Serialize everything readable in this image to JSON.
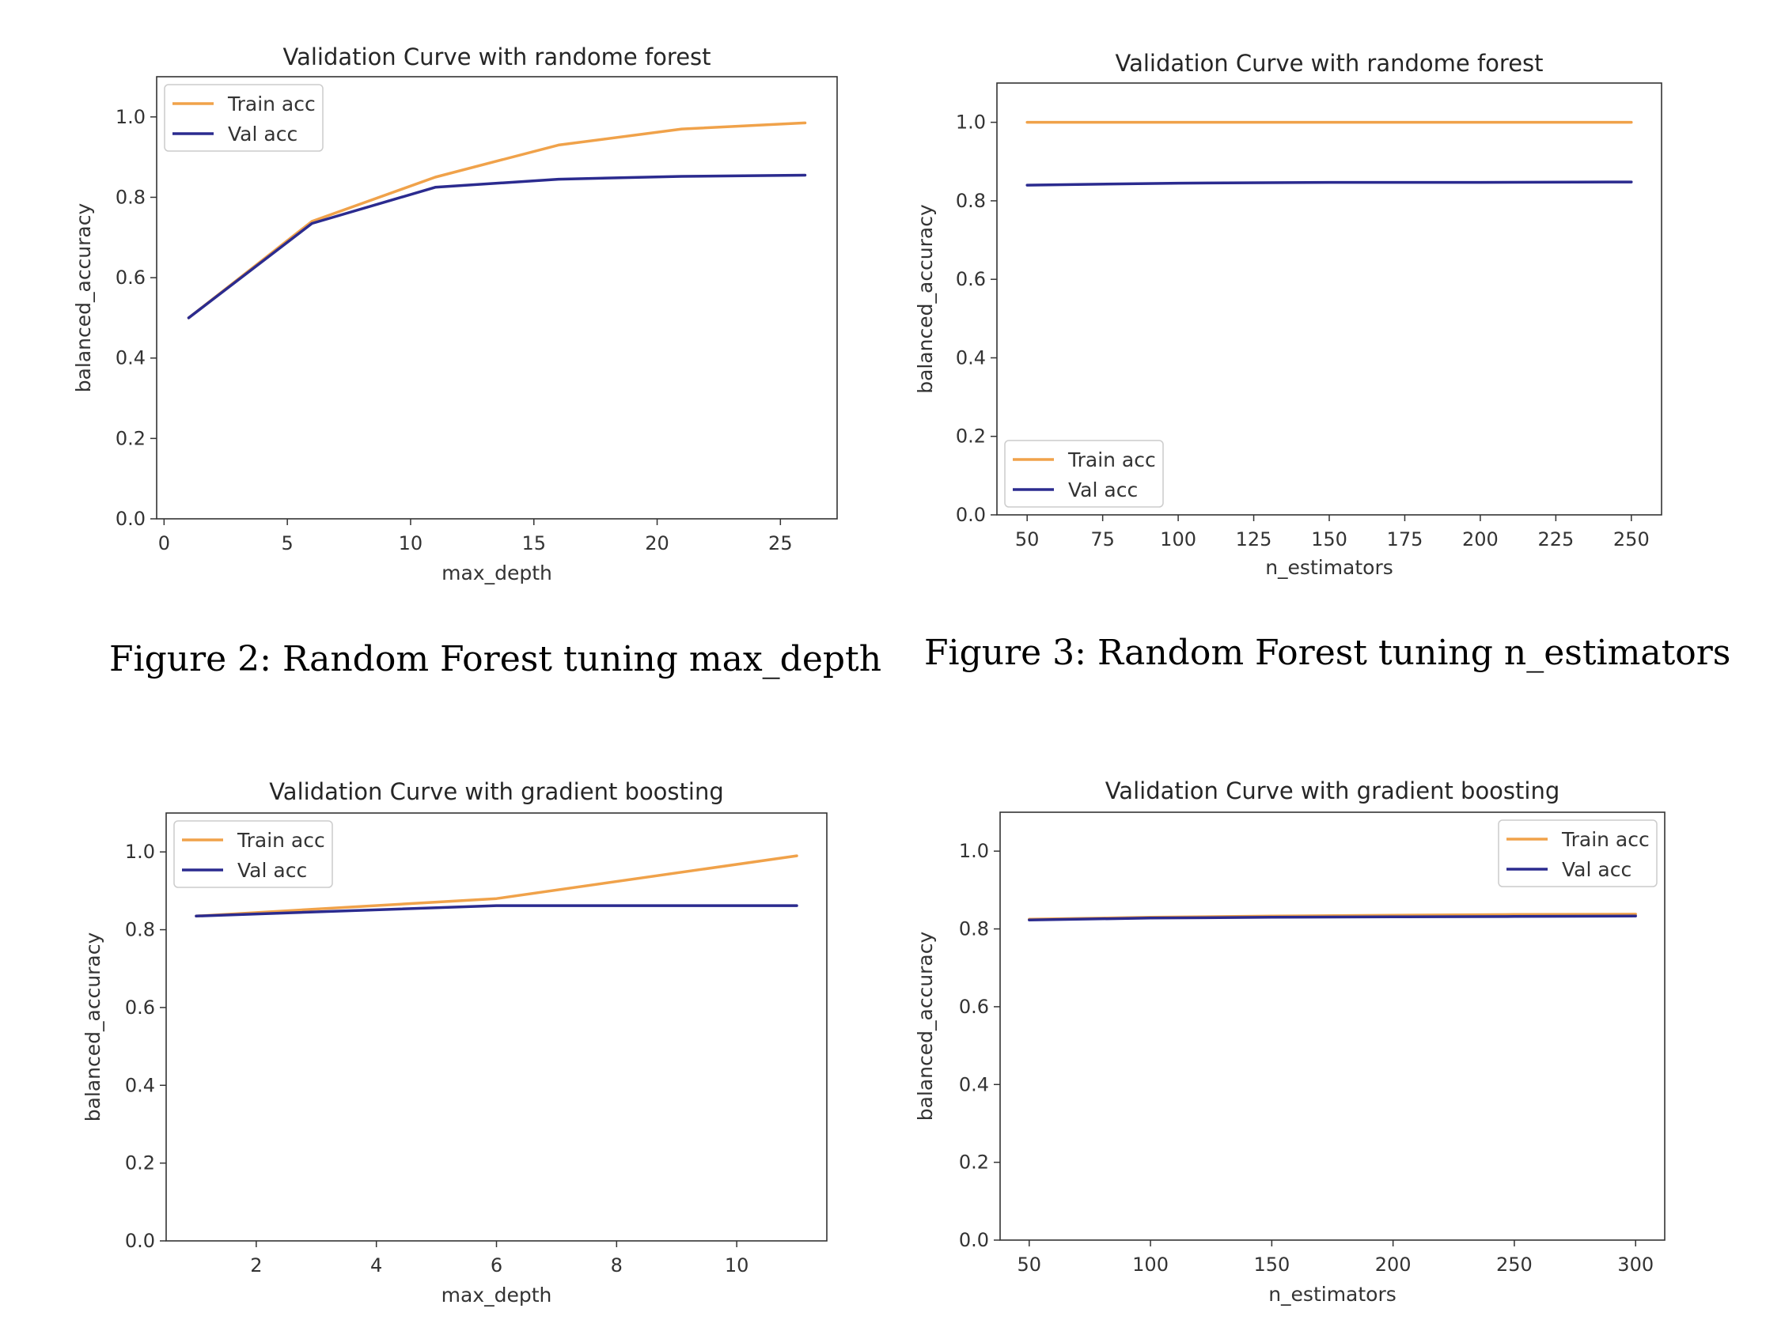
{
  "colors": {
    "train": "#f0a24a",
    "val": "#2b2b8f",
    "axis": "#333333"
  },
  "captions": [
    "Figure 2: Random Forest tuning max_depth",
    "Figure 3: Random Forest tuning n_estimators"
  ],
  "chart_data": [
    {
      "type": "line",
      "title": "Validation Curve with randome forest",
      "xlabel": "max_depth",
      "ylabel": "balanced_accuracy",
      "xlim": [
        -0.3,
        27.3
      ],
      "ylim": [
        0,
        1.1
      ],
      "xticks": [
        0,
        5,
        10,
        15,
        20,
        25
      ],
      "xtick_labels": [
        "0",
        "5",
        "10",
        "15",
        "20",
        "25"
      ],
      "yticks": [
        0,
        0.2,
        0.4,
        0.6,
        0.8,
        1.0
      ],
      "ytick_labels": [
        "0.0",
        "0.2",
        "0.4",
        "0.6",
        "0.8",
        "1.0"
      ],
      "legend": "upper-left",
      "grid": false,
      "x": [
        1,
        6,
        11,
        16,
        21,
        26
      ],
      "series": [
        {
          "name": "Train acc",
          "values": [
            0.5,
            0.74,
            0.85,
            0.93,
            0.97,
            0.985
          ]
        },
        {
          "name": "Val acc",
          "values": [
            0.5,
            0.735,
            0.825,
            0.845,
            0.852,
            0.855
          ]
        }
      ]
    },
    {
      "type": "line",
      "title": "Validation Curve with randome forest",
      "xlabel": "n_estimators",
      "ylabel": "balanced_accuracy",
      "xlim": [
        40,
        260
      ],
      "ylim": [
        0,
        1.1
      ],
      "xticks": [
        50,
        75,
        100,
        125,
        150,
        175,
        200,
        225,
        250
      ],
      "xtick_labels": [
        "50",
        "75",
        "100",
        "125",
        "150",
        "175",
        "200",
        "225",
        "250"
      ],
      "yticks": [
        0,
        0.2,
        0.4,
        0.6,
        0.8,
        1.0
      ],
      "ytick_labels": [
        "0.0",
        "0.2",
        "0.4",
        "0.6",
        "0.8",
        "1.0"
      ],
      "legend": "lower-left",
      "grid": false,
      "x": [
        50,
        100,
        150,
        200,
        250
      ],
      "series": [
        {
          "name": "Train acc",
          "values": [
            1.0,
            1.0,
            1.0,
            1.0,
            1.0
          ]
        },
        {
          "name": "Val acc",
          "values": [
            0.84,
            0.845,
            0.847,
            0.847,
            0.848
          ]
        }
      ]
    },
    {
      "type": "line",
      "title": "Validation Curve with gradient boosting",
      "xlabel": "max_depth",
      "ylabel": "balanced_accuracy",
      "xlim": [
        0.5,
        11.5
      ],
      "ylim": [
        0,
        1.1
      ],
      "xticks": [
        2,
        4,
        6,
        8,
        10
      ],
      "xtick_labels": [
        "2",
        "4",
        "6",
        "8",
        "10"
      ],
      "yticks": [
        0,
        0.2,
        0.4,
        0.6,
        0.8,
        1.0
      ],
      "ytick_labels": [
        "0.0",
        "0.2",
        "0.4",
        "0.6",
        "0.8",
        "1.0"
      ],
      "legend": "upper-left",
      "grid": false,
      "x": [
        1,
        6,
        11
      ],
      "series": [
        {
          "name": "Train acc",
          "values": [
            0.835,
            0.88,
            0.99
          ]
        },
        {
          "name": "Val acc",
          "values": [
            0.835,
            0.862,
            0.862
          ]
        }
      ]
    },
    {
      "type": "line",
      "title": "Validation Curve with gradient boosting",
      "xlabel": "n_estimators",
      "ylabel": "balanced_accuracy",
      "xlim": [
        38,
        312
      ],
      "ylim": [
        0,
        1.1
      ],
      "xticks": [
        50,
        100,
        150,
        200,
        250,
        300
      ],
      "xtick_labels": [
        "50",
        "100",
        "150",
        "200",
        "250",
        "300"
      ],
      "yticks": [
        0,
        0.2,
        0.4,
        0.6,
        0.8,
        1.0
      ],
      "ytick_labels": [
        "0.0",
        "0.2",
        "0.4",
        "0.6",
        "0.8",
        "1.0"
      ],
      "legend": "upper-right",
      "grid": false,
      "x": [
        50,
        100,
        150,
        200,
        250,
        300
      ],
      "series": [
        {
          "name": "Train acc",
          "values": [
            0.825,
            0.83,
            0.833,
            0.835,
            0.837,
            0.838
          ]
        },
        {
          "name": "Val acc",
          "values": [
            0.823,
            0.828,
            0.83,
            0.831,
            0.832,
            0.833
          ]
        }
      ]
    }
  ]
}
